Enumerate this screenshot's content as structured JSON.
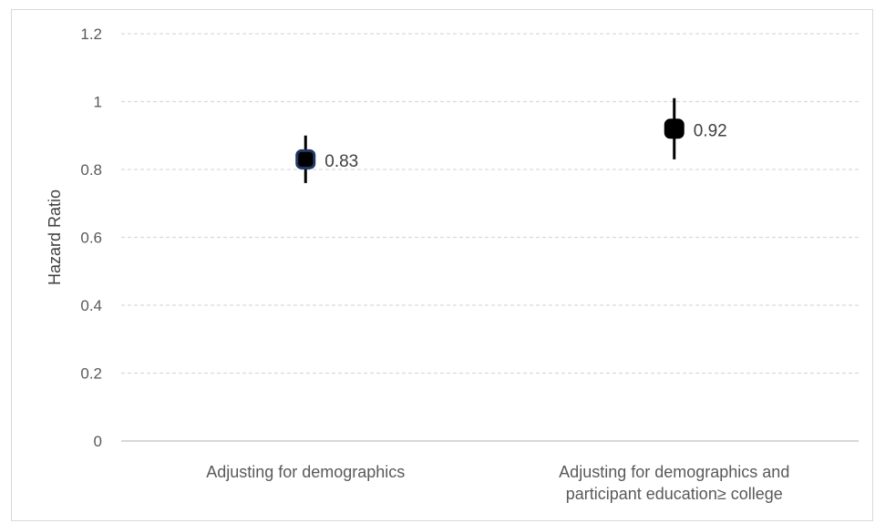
{
  "chart_data": {
    "type": "scatter",
    "title": "",
    "xlabel": "",
    "ylabel": "Hazard Ratio",
    "ylim": [
      0,
      1.2
    ],
    "yticks": [
      "0",
      "0.2",
      "0.4",
      "0.6",
      "0.8",
      "1",
      "1.2"
    ],
    "grid": true,
    "categories": [
      [
        "Adjusting for demographics"
      ],
      [
        "Adjusting for demographics and",
        "participant education≥ college"
      ]
    ],
    "values": [
      0.83,
      0.92
    ],
    "ci_low": [
      0.76,
      0.83
    ],
    "ci_high": [
      0.9,
      1.01
    ],
    "data_labels": [
      "0.83",
      "0.92"
    ],
    "marker_colors": [
      "#1f3864",
      "#000000"
    ]
  }
}
